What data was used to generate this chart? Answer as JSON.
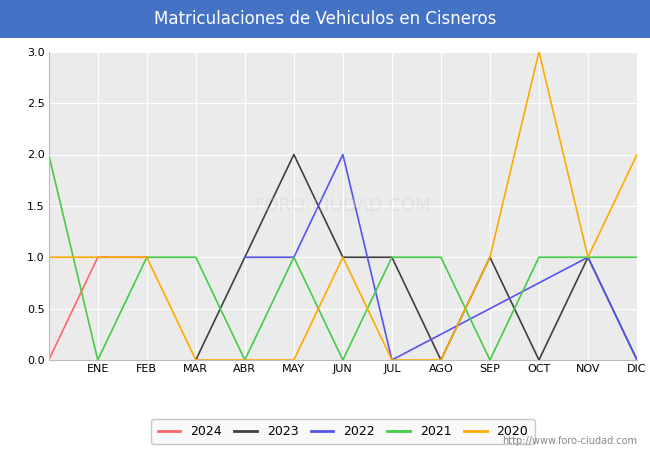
{
  "title": "Matriculaciones de Vehiculos en Cisneros",
  "months": [
    "",
    "ENE",
    "FEB",
    "MAR",
    "ABR",
    "MAY",
    "JUN",
    "JUL",
    "AGO",
    "SEP",
    "OCT",
    "NOV",
    "DIC"
  ],
  "series": {
    "2024": {
      "color": "#ff6666",
      "x": [
        0,
        1,
        2
      ],
      "y": [
        0,
        1,
        1
      ]
    },
    "2023": {
      "color": "#404040",
      "x": [
        3,
        4,
        5,
        6,
        7,
        8,
        9,
        10,
        11,
        12
      ],
      "y": [
        0,
        1,
        2,
        1,
        1,
        0,
        1,
        0,
        1,
        0
      ]
    },
    "2022": {
      "color": "#5555ee",
      "x": [
        4,
        5,
        6,
        7,
        11,
        12
      ],
      "y": [
        1,
        1,
        2,
        0,
        1,
        0
      ]
    },
    "2021": {
      "color": "#44cc44",
      "x": [
        0,
        1,
        2,
        3,
        4,
        5,
        6,
        7,
        8,
        9,
        10,
        11,
        12
      ],
      "y": [
        2,
        0,
        1,
        1,
        0,
        1,
        0,
        1,
        1,
        0,
        1,
        1,
        1
      ]
    },
    "2020": {
      "color": "#ffaa00",
      "x": [
        0,
        1,
        2,
        3,
        4,
        5,
        6,
        7,
        8,
        9,
        10,
        11,
        12
      ],
      "y": [
        1,
        1,
        1,
        0,
        0,
        0,
        1,
        0,
        0,
        1,
        3,
        1,
        2
      ]
    }
  },
  "ylim": [
    0,
    3.0
  ],
  "yticks": [
    0.0,
    0.5,
    1.0,
    1.5,
    2.0,
    2.5,
    3.0
  ],
  "title_bg_color": "#4472c4",
  "title_font_color": "#ffffff",
  "plot_bg_color": "#ebebeb",
  "grid_color": "#ffffff",
  "watermark": "http://www.foro-ciudad.com",
  "legend_order": [
    "2024",
    "2023",
    "2022",
    "2021",
    "2020"
  ]
}
